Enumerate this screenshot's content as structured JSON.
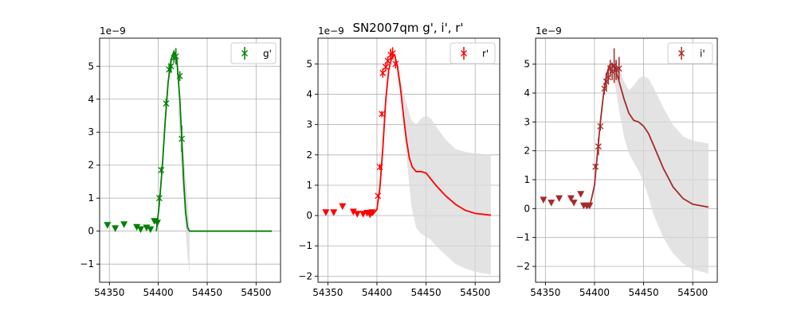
{
  "figure": {
    "title": "SN2007qm  g', i', r'",
    "exponent_label": "1e−9"
  },
  "chart_data": [
    {
      "type": "line",
      "legend": {
        "label": "g'",
        "placement": "top-right"
      },
      "color": "#008000",
      "grid": true,
      "xlim": [
        54340,
        54525
      ],
      "ylim": [
        -1.55,
        5.85
      ],
      "xticks": [
        54350,
        54400,
        54450,
        54500
      ],
      "yticks": [
        -1,
        0,
        1,
        2,
        3,
        4,
        5
      ],
      "model": {
        "x": [
          54398,
          54401,
          54404,
          54407,
          54410,
          54413,
          54416,
          54419,
          54422,
          54424,
          54426,
          54428,
          54430,
          54432,
          54436,
          54450,
          54480,
          54516
        ],
        "y": [
          0.0,
          0.8,
          1.9,
          3.3,
          4.5,
          5.2,
          5.45,
          5.2,
          4.0,
          2.8,
          1.5,
          0.55,
          0.1,
          0.0,
          0.0,
          0.0,
          0.0,
          0.0
        ]
      },
      "band": {
        "x": [
          54420,
          54423,
          54426,
          54428,
          54430,
          54432
        ],
        "upper": [
          4.1,
          3.3,
          2.3,
          1.6,
          1.0,
          0.0
        ],
        "lower": [
          3.9,
          2.2,
          0.9,
          0.0,
          -0.8,
          -1.3
        ]
      },
      "detections": {
        "x": [
          54401,
          54403,
          54408,
          54411,
          54413,
          54416,
          54418,
          54422,
          54424
        ],
        "y": [
          1.0,
          1.85,
          3.87,
          4.9,
          5.0,
          5.25,
          5.3,
          4.7,
          2.8
        ],
        "err": [
          0.1,
          0.1,
          0.15,
          0.15,
          0.2,
          0.15,
          0.25,
          0.15,
          0.4
        ]
      },
      "upper_limits": {
        "x": [
          54348,
          54356,
          54365,
          54378,
          54382,
          54388,
          54392,
          54396,
          54399
        ],
        "y": [
          0.18,
          0.08,
          0.2,
          0.12,
          0.05,
          0.1,
          0.05,
          0.3,
          0.25
        ]
      }
    },
    {
      "type": "line",
      "legend": {
        "label": "r'",
        "placement": "top-right"
      },
      "color": "#ff0000",
      "grid": true,
      "xlim": [
        54340,
        54525
      ],
      "ylim": [
        -2.2,
        5.85
      ],
      "xticks": [
        54350,
        54400,
        54450,
        54500
      ],
      "yticks": [
        -2,
        -1,
        0,
        1,
        2,
        3,
        4,
        5
      ],
      "model": {
        "x": [
          54395,
          54400,
          54403,
          54406,
          54409,
          54412,
          54415,
          54418,
          54421,
          54424,
          54427,
          54430,
          54433,
          54436,
          54440,
          54445,
          54450,
          54455,
          54460,
          54470,
          54480,
          54490,
          54500,
          54516
        ],
        "y": [
          0.0,
          0.2,
          0.9,
          2.2,
          3.8,
          4.8,
          5.2,
          5.3,
          4.9,
          4.2,
          3.3,
          2.5,
          1.9,
          1.6,
          1.45,
          1.45,
          1.4,
          1.2,
          1.0,
          0.65,
          0.37,
          0.17,
          0.07,
          0.01
        ]
      },
      "band": {
        "x": [
          54420,
          54425,
          54430,
          54435,
          54440,
          54445,
          54450,
          54455,
          54460,
          54470,
          54480,
          54490,
          54500,
          54516
        ],
        "upper": [
          5.1,
          4.3,
          3.7,
          3.15,
          3.0,
          3.2,
          3.3,
          3.2,
          2.95,
          2.5,
          2.2,
          2.1,
          2.05,
          2.0
        ],
        "lower": [
          4.7,
          3.8,
          2.0,
          0.3,
          -0.4,
          -0.6,
          -0.7,
          -0.8,
          -1.0,
          -1.3,
          -1.6,
          -1.75,
          -1.85,
          -1.95
        ]
      },
      "detections": {
        "x": [
          54401,
          54403,
          54405,
          54406,
          54409,
          54411,
          54414,
          54416,
          54419
        ],
        "y": [
          0.65,
          1.6,
          3.35,
          4.7,
          4.9,
          5.1,
          5.3,
          5.35,
          5.0
        ],
        "err": [
          0.05,
          0.1,
          0.1,
          0.15,
          0.15,
          0.15,
          0.2,
          0.2,
          0.15
        ]
      },
      "upper_limits": {
        "x": [
          54348,
          54356,
          54365,
          54376,
          54380,
          54386,
          54390,
          54393,
          54395
        ],
        "y": [
          0.1,
          0.1,
          0.3,
          0.12,
          0.05,
          0.05,
          0.08,
          0.03,
          0.1
        ]
      }
    },
    {
      "type": "line",
      "legend": {
        "label": "i'",
        "placement": "top-right"
      },
      "color": "#a52a2a",
      "grid": true,
      "xlim": [
        54340,
        54525
      ],
      "ylim": [
        -2.55,
        5.9
      ],
      "xticks": [
        54350,
        54400,
        54450,
        54500
      ],
      "yticks": [
        -2,
        -1,
        0,
        1,
        2,
        3,
        4,
        5
      ],
      "model": {
        "x": [
          54392,
          54396,
          54400,
          54403,
          54406,
          54409,
          54412,
          54415,
          54418,
          54421,
          54425,
          54430,
          54435,
          54440,
          54445,
          54450,
          54455,
          54460,
          54470,
          54480,
          54490,
          54500,
          54516
        ],
        "y": [
          0.0,
          0.2,
          0.8,
          1.9,
          3.0,
          3.9,
          4.6,
          4.95,
          5.0,
          4.85,
          4.4,
          3.8,
          3.3,
          3.05,
          3.0,
          2.85,
          2.6,
          2.2,
          1.4,
          0.75,
          0.35,
          0.15,
          0.05
        ]
      },
      "band": {
        "x": [
          54420,
          54425,
          54430,
          54435,
          54440,
          54445,
          54450,
          54455,
          54460,
          54470,
          54480,
          54490,
          54500,
          54516
        ],
        "upper": [
          5.2,
          4.9,
          4.4,
          4.1,
          4.25,
          4.5,
          4.6,
          4.5,
          4.2,
          3.5,
          2.9,
          2.5,
          2.35,
          2.25
        ],
        "lower": [
          4.5,
          3.4,
          2.5,
          1.9,
          1.6,
          1.3,
          0.9,
          0.4,
          -0.2,
          -1.0,
          -1.55,
          -1.9,
          -2.1,
          -2.25
        ]
      },
      "detections": {
        "x": [
          54401,
          54404,
          54406,
          54410,
          54412,
          54414,
          54416,
          54418,
          54420,
          54422,
          54425
        ],
        "y": [
          1.45,
          2.15,
          2.85,
          4.15,
          4.4,
          4.55,
          4.85,
          4.75,
          4.95,
          4.8,
          4.85
        ],
        "err": [
          0.1,
          0.3,
          0.15,
          0.2,
          0.3,
          0.25,
          0.3,
          0.3,
          0.6,
          0.35,
          0.4
        ]
      },
      "upper_limits": {
        "x": [
          54348,
          54356,
          54364,
          54376,
          54379,
          54386,
          54389,
          54392,
          54395
        ],
        "y": [
          0.3,
          0.2,
          0.35,
          0.35,
          0.2,
          0.5,
          0.1,
          0.1,
          0.1
        ]
      }
    }
  ]
}
